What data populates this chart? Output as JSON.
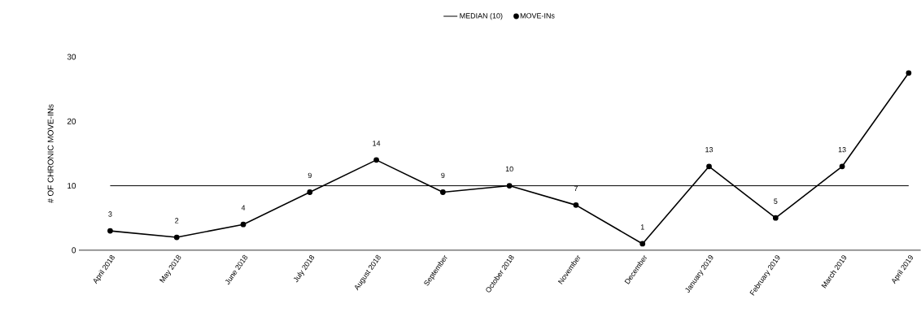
{
  "chart_data": {
    "type": "line",
    "ylabel": "# OF CHRONIC MOVE-INs",
    "categories": [
      "April 2018",
      "May 2018",
      "June 2018",
      "July 2018",
      "August 2018",
      "September",
      "October 2018",
      "November",
      "December",
      "January 2019",
      "February 2019",
      "March 2019",
      "April 2019"
    ],
    "series": [
      {
        "name": "MOVE-INs",
        "color": "#000000",
        "values": [
          3,
          2,
          4,
          9,
          14,
          9,
          10,
          7,
          1,
          13,
          5,
          13,
          27.5
        ],
        "value_labels": [
          "3",
          "2",
          "4",
          "9",
          "14",
          "9",
          "10",
          "7",
          "1",
          "13",
          "5",
          "13",
          null
        ]
      }
    ],
    "ylim": [
      0,
      30
    ],
    "yticks": [
      0,
      10,
      20,
      30
    ],
    "ref_lines": [
      {
        "axis": "y",
        "value": 10,
        "label": "MEDIAN (10)",
        "color": "#000000",
        "line_style": "solid"
      }
    ],
    "legend": "top",
    "marker": "circle",
    "line_style": "solid",
    "grid": false
  }
}
